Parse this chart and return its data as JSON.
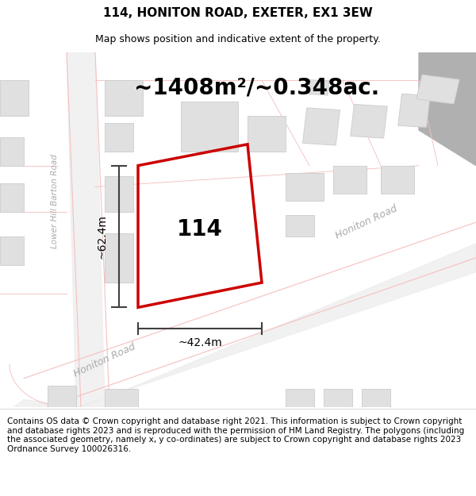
{
  "title": "114, HONITON ROAD, EXETER, EX1 3EW",
  "subtitle": "Map shows position and indicative extent of the property.",
  "area_text": "~1408m²/~0.348ac.",
  "label_114": "114",
  "dim_width": "~42.4m",
  "dim_height": "~62.4m",
  "road_label_honiton_bottom": "Honiton Road",
  "road_label_honiton_right": "Honiton Road",
  "road_label_left": "Lower Hill Barton Road",
  "footer_text": "Contains OS data © Crown copyright and database right 2021. This information is subject to Crown copyright and database rights 2023 and is reproduced with the permission of HM Land Registry. The polygons (including the associated geometry, namely x, y co-ordinates) are subject to Crown copyright and database rights 2023 Ordnance Survey 100026316.",
  "bg_color": "#f5f5f5",
  "map_bg": "#ffffff",
  "road_color": "#f5c0c0",
  "road_fill": "#f0f0f0",
  "building_fill": "#e0e0e0",
  "building_edge": "#cccccc",
  "red_outline": "#cc0000",
  "dim_line_color": "#404040",
  "title_fontsize": 11,
  "subtitle_fontsize": 9,
  "area_fontsize": 18,
  "label_fontsize": 16,
  "footer_fontsize": 7.5,
  "road_label_fontsize": 9,
  "dim_fontsize": 10,
  "gray_bar_color": "#b0b0b0"
}
